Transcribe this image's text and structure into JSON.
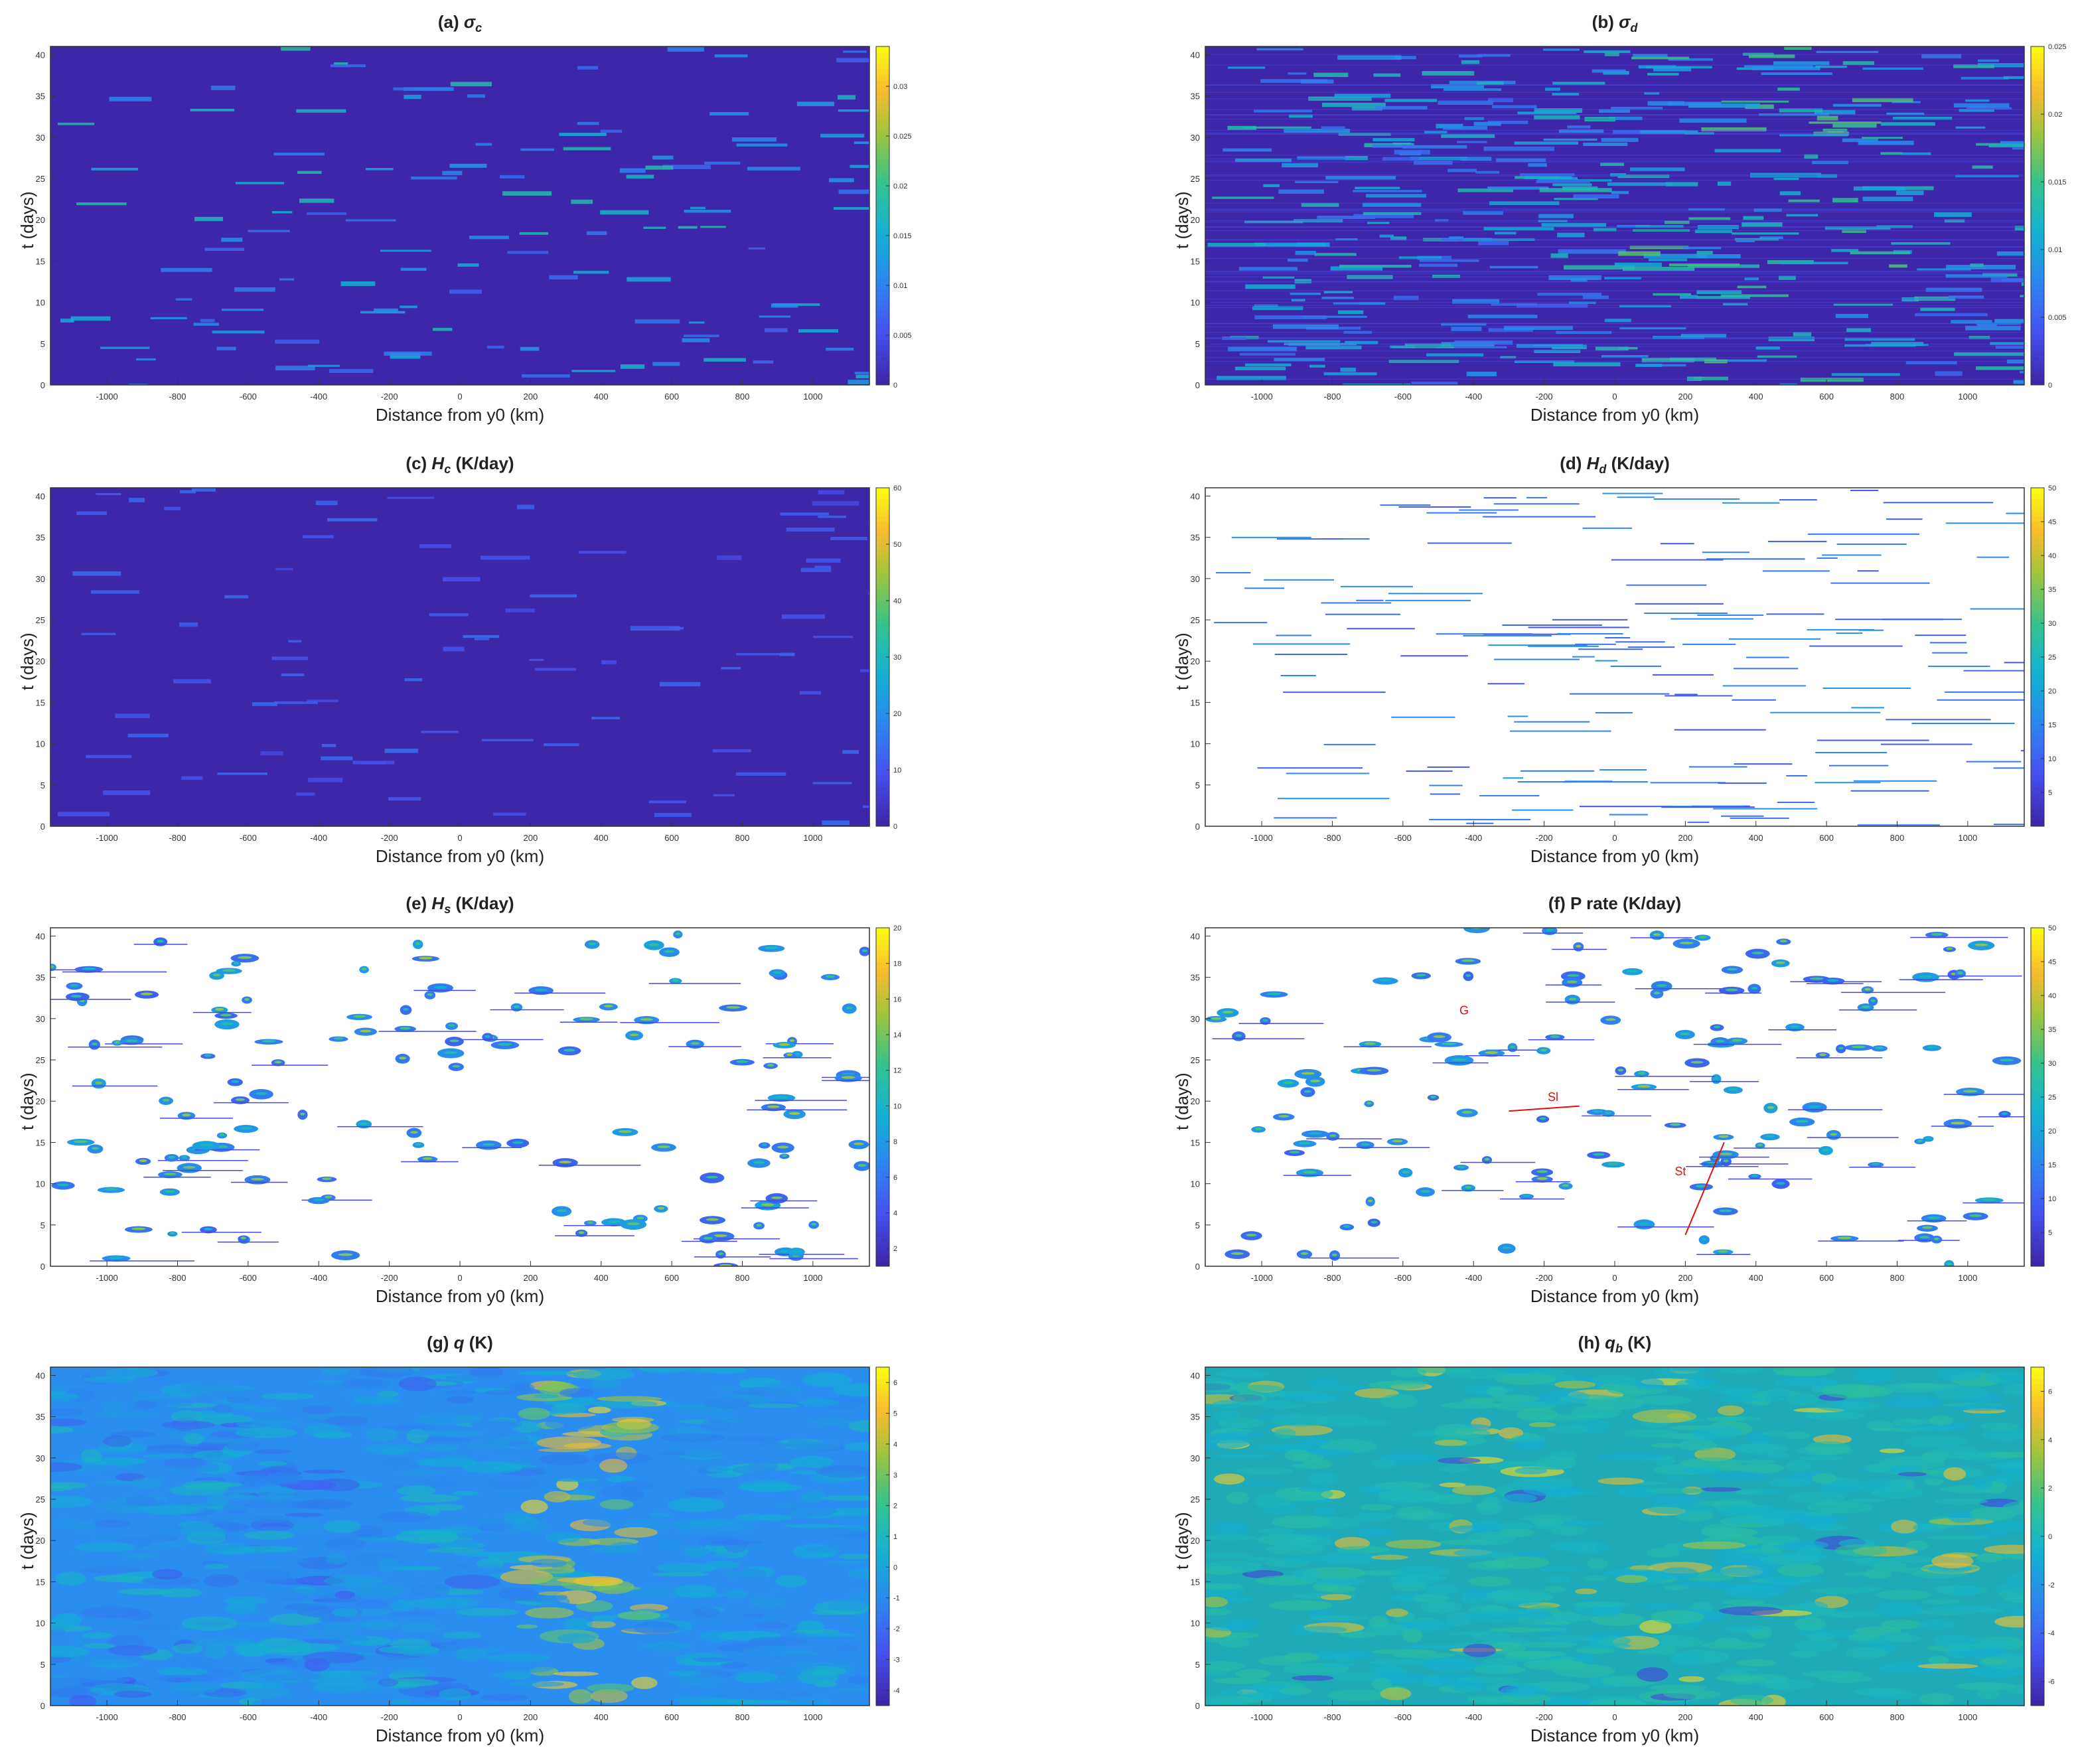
{
  "figure": {
    "panels": [
      {
        "id": "a",
        "title_prefix": "(a)",
        "symbol": "σ",
        "subscript": "c",
        "units": "",
        "style": "dense-low",
        "cbar_ticks": [
          "0",
          "0.005",
          "0.01",
          "0.015",
          "0.02",
          "0.025",
          "0.03"
        ],
        "cbar_max": 0.034
      },
      {
        "id": "b",
        "title_prefix": "(b)",
        "symbol": "σ",
        "subscript": "d",
        "units": "",
        "style": "dense-striped",
        "cbar_ticks": [
          "0",
          "0.005",
          "0.01",
          "0.015",
          "0.02",
          "0.025"
        ],
        "cbar_max": 0.025
      },
      {
        "id": "c",
        "title_prefix": "(c)",
        "symbol": "H",
        "subscript": "c",
        "units": "(K/day)",
        "style": "dense-faint",
        "cbar_ticks": [
          "0",
          "10",
          "20",
          "30",
          "40",
          "50",
          "60"
        ],
        "cbar_max": 60
      },
      {
        "id": "d",
        "title_prefix": "(d)",
        "symbol": "H",
        "subscript": "d",
        "units": "(K/day)",
        "style": "sparse-streaks",
        "cbar_ticks": [
          "5",
          "10",
          "15",
          "20",
          "25",
          "30",
          "35",
          "40",
          "45",
          "50"
        ],
        "cbar_max": 50
      },
      {
        "id": "e",
        "title_prefix": "(e)",
        "symbol": "H",
        "subscript": "s",
        "units": "(K/day)",
        "style": "sparse-blobs",
        "cbar_ticks": [
          "2",
          "4",
          "6",
          "8",
          "10",
          "12",
          "14",
          "16",
          "18",
          "20"
        ],
        "cbar_max": 20
      },
      {
        "id": "f",
        "title_prefix": "(f)",
        "symbol": "P rate",
        "subscript": "",
        "units": "(K/day)",
        "style": "sparse-blobs-annot",
        "cbar_ticks": [
          "5",
          "10",
          "15",
          "20",
          "25",
          "30",
          "35",
          "40",
          "45",
          "50"
        ],
        "cbar_max": 50
      },
      {
        "id": "g",
        "title_prefix": "(g)",
        "symbol": "q",
        "subscript": "",
        "units": "(K)",
        "style": "field-q",
        "cbar_ticks": [
          "-4",
          "-3",
          "-2",
          "-1",
          "0",
          "1",
          "2",
          "3",
          "4",
          "5",
          "6"
        ],
        "cbar_max": 6
      },
      {
        "id": "h",
        "title_prefix": "(h)",
        "symbol": "q",
        "subscript": "b",
        "units": "(K)",
        "style": "field-qb",
        "cbar_ticks": [
          "-6",
          "-4",
          "-2",
          "0",
          "2",
          "4",
          "6"
        ],
        "cbar_max": 6
      }
    ],
    "xlabel": "Distance from y0 (km)",
    "ylabel": "t (days)",
    "x_ticks": [
      "-1000",
      "-800",
      "-600",
      "-400",
      "-200",
      "0",
      "200",
      "400",
      "600",
      "800",
      "1000"
    ],
    "y_ticks": [
      "0",
      "5",
      "10",
      "15",
      "20",
      "25",
      "30",
      "35",
      "40"
    ],
    "annotations_f": [
      "G",
      "Sl",
      "St"
    ]
  },
  "chart_data": [
    {
      "type": "heatmap",
      "title": "(a) σc",
      "xlabel": "Distance from y0 (km)",
      "ylabel": "t (days)",
      "xlim": [
        -1160,
        1160
      ],
      "ylim": [
        0,
        41
      ],
      "colorbar_range": [
        0,
        0.034
      ],
      "colormap": "parula"
    },
    {
      "type": "heatmap",
      "title": "(b) σd",
      "xlabel": "Distance from y0 (km)",
      "ylabel": "t (days)",
      "xlim": [
        -1160,
        1160
      ],
      "ylim": [
        0,
        41
      ],
      "colorbar_range": [
        0,
        0.025
      ],
      "colormap": "parula"
    },
    {
      "type": "heatmap",
      "title": "(c) Hc (K/day)",
      "xlabel": "Distance from y0 (km)",
      "ylabel": "t (days)",
      "xlim": [
        -1160,
        1160
      ],
      "ylim": [
        0,
        41
      ],
      "colorbar_range": [
        0,
        60
      ],
      "colormap": "parula"
    },
    {
      "type": "heatmap",
      "title": "(d) Hd (K/day)",
      "xlabel": "Distance from y0 (km)",
      "ylabel": "t (days)",
      "xlim": [
        -1160,
        1160
      ],
      "ylim": [
        0,
        41
      ],
      "colorbar_range": [
        0,
        50
      ],
      "colormap": "parula"
    },
    {
      "type": "heatmap",
      "title": "(e) Hs (K/day)",
      "xlabel": "Distance from y0 (km)",
      "ylabel": "t (days)",
      "xlim": [
        -1160,
        1160
      ],
      "ylim": [
        0,
        41
      ],
      "colorbar_range": [
        1,
        20
      ],
      "colormap": "parula"
    },
    {
      "type": "heatmap",
      "title": "(f) P rate (K/day)",
      "xlabel": "Distance from y0 (km)",
      "ylabel": "t (days)",
      "xlim": [
        -1160,
        1160
      ],
      "ylim": [
        0,
        41
      ],
      "colorbar_range": [
        0,
        50
      ],
      "colormap": "parula",
      "annotations": [
        {
          "text": "G",
          "x": -440,
          "t": 30.5
        },
        {
          "text": "Sl",
          "x": -190,
          "t": 20
        },
        {
          "text": "St",
          "x": 170,
          "t": 11
        }
      ]
    },
    {
      "type": "heatmap",
      "title": "(g) q (K)",
      "xlabel": "Distance from y0 (km)",
      "ylabel": "t (days)",
      "xlim": [
        -1160,
        1160
      ],
      "ylim": [
        0,
        41
      ],
      "colorbar_range": [
        -4.5,
        6.5
      ],
      "colormap": "parula"
    },
    {
      "type": "heatmap",
      "title": "(h) qb (K)",
      "xlabel": "Distance from y0 (km)",
      "ylabel": "t (days)",
      "xlim": [
        -1160,
        1160
      ],
      "ylim": [
        0,
        41
      ],
      "colorbar_range": [
        -7,
        7
      ],
      "colormap": "parula"
    }
  ]
}
